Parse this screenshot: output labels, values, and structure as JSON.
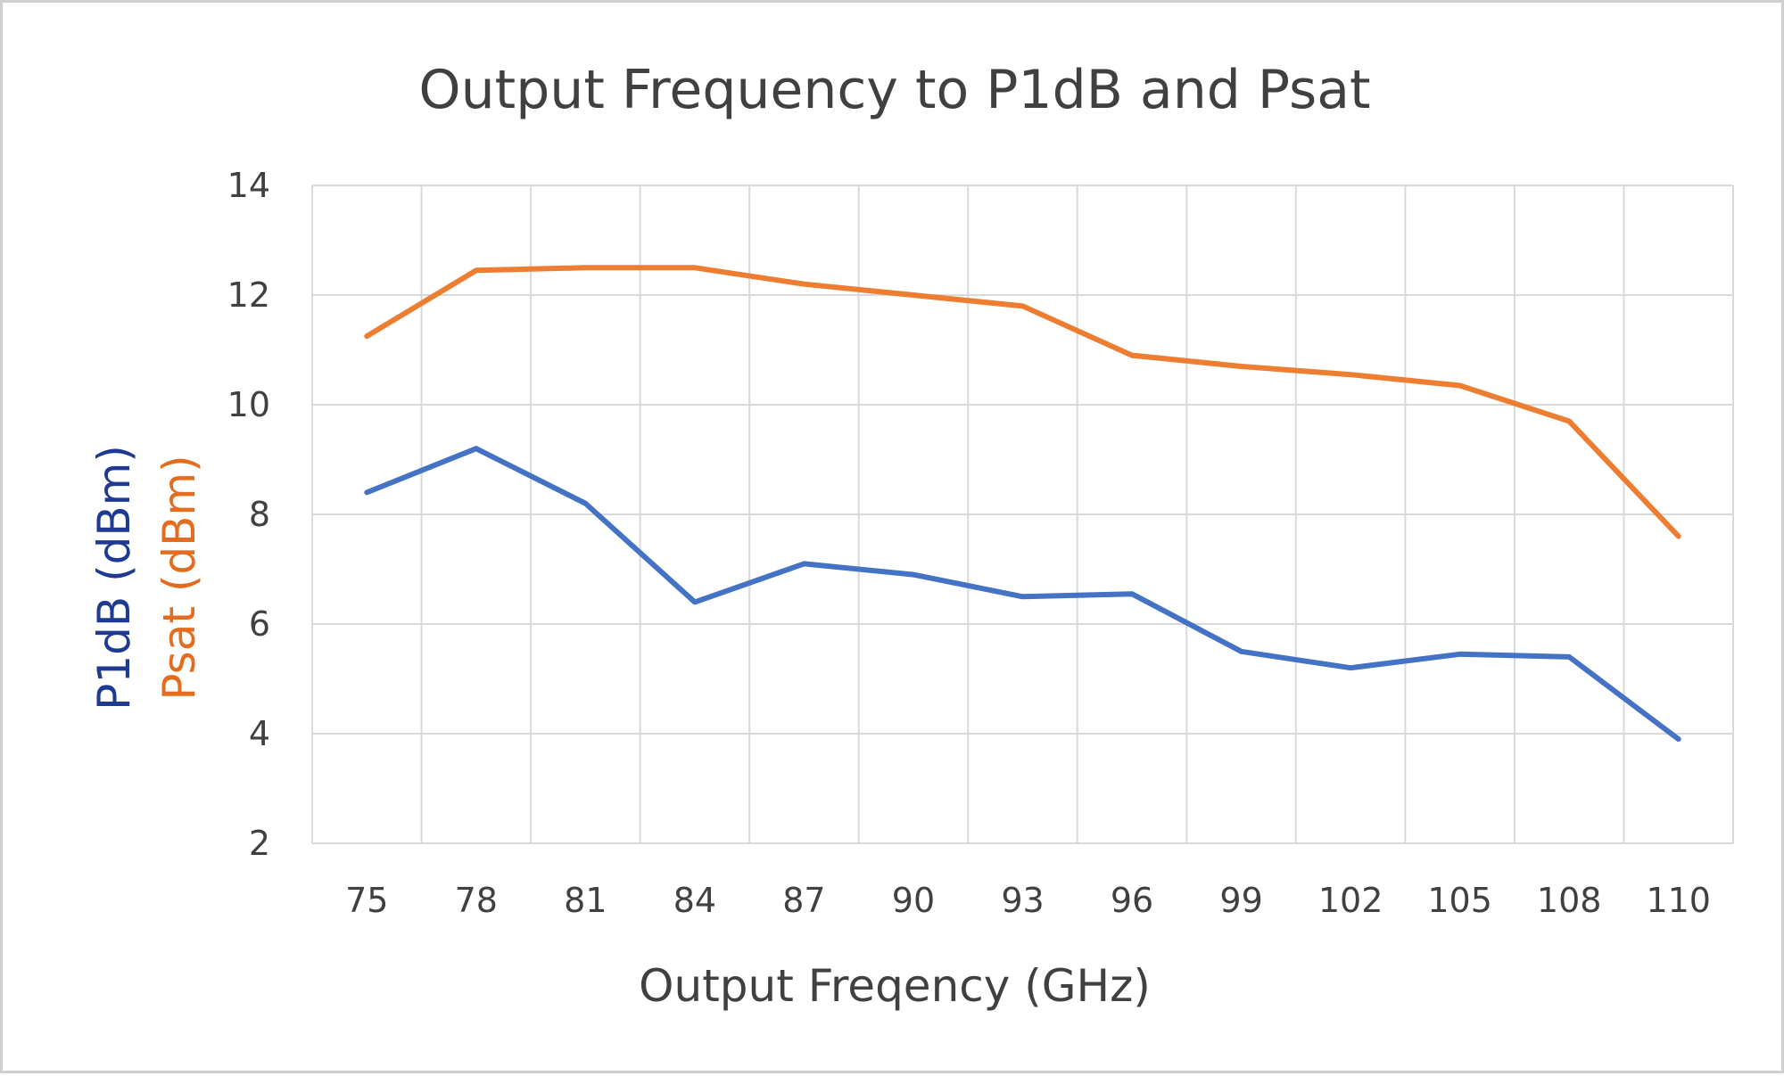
{
  "chart_data": {
    "type": "line",
    "title": "Output Frequency to P1dB and Psat",
    "xlabel": "Output Freqency (GHz)",
    "ylabels": [
      {
        "text": "P1dB (dBm)",
        "color": "#1f3a93"
      },
      {
        "text": "Psat (dBm)",
        "color": "#e36c1e"
      }
    ],
    "categories": [
      "75",
      "78",
      "81",
      "84",
      "87",
      "90",
      "93",
      "96",
      "99",
      "102",
      "105",
      "108",
      "110"
    ],
    "ylim": [
      2,
      14
    ],
    "yticks": [
      2,
      4,
      6,
      8,
      10,
      12,
      14
    ],
    "grid": true,
    "legend": "none",
    "series": [
      {
        "name": "P1dB",
        "color": "#4472c4",
        "values": [
          8.4,
          9.2,
          8.2,
          6.4,
          7.1,
          6.9,
          6.5,
          6.55,
          5.5,
          5.2,
          5.45,
          5.4,
          3.9
        ]
      },
      {
        "name": "Psat",
        "color": "#ed7d31",
        "values": [
          11.25,
          12.45,
          12.5,
          12.5,
          12.2,
          12.0,
          11.8,
          10.9,
          10.7,
          10.55,
          10.35,
          9.7,
          7.6
        ]
      }
    ]
  }
}
